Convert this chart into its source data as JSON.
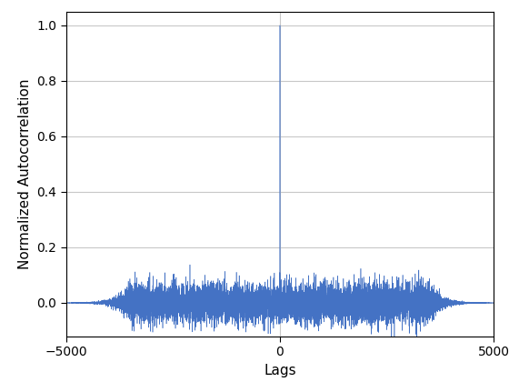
{
  "xlabel": "Lags",
  "ylabel": "Normalized Autocorrelation",
  "xlim": [
    -5000,
    5000
  ],
  "ylim": [
    -0.12,
    1.05
  ],
  "yticks": [
    0.0,
    0.2,
    0.4,
    0.6,
    0.8,
    1.0
  ],
  "xticks": [
    -5000,
    0,
    5000
  ],
  "line_color": "#4472C4",
  "background_color": "#ffffff",
  "grid_color": "#c8c8c8",
  "n_lags": 10001,
  "noise_scale": 0.035,
  "seed": 42
}
